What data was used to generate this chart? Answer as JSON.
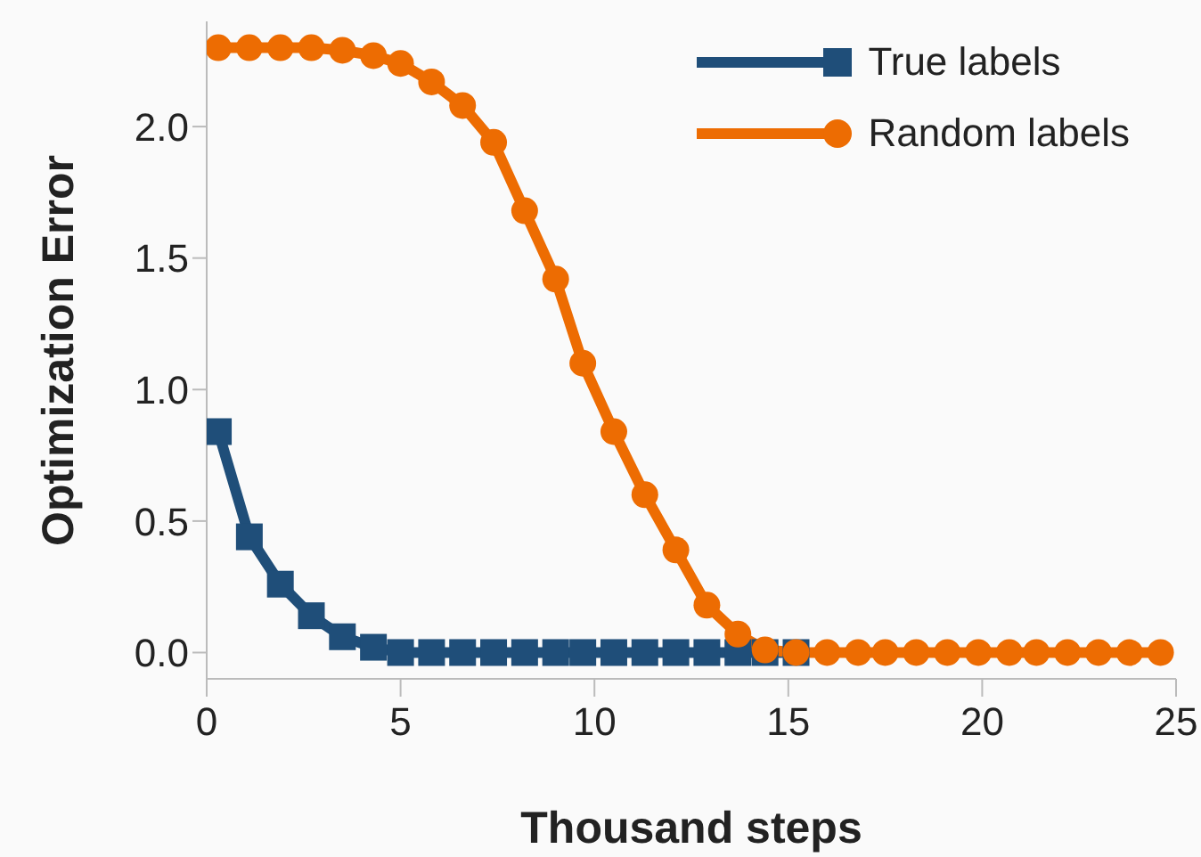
{
  "chart_data": {
    "type": "line",
    "xlabel": "Thousand steps",
    "ylabel": "Optimization Error",
    "x": [
      0.3,
      1.1,
      1.9,
      2.7,
      3.5,
      4.3,
      5.0,
      5.8,
      6.6,
      7.4,
      8.2,
      9.0,
      9.7,
      10.5,
      11.3,
      12.1,
      12.9,
      13.7,
      14.4,
      15.2,
      16.0,
      16.8,
      17.5,
      18.3,
      19.1,
      19.9,
      20.7,
      21.4,
      22.2,
      23.0,
      23.8,
      24.6
    ],
    "series": [
      {
        "name": "True labels",
        "color": "#1f4e79",
        "marker": "square",
        "values": [
          0.84,
          0.44,
          0.26,
          0.14,
          0.06,
          0.02,
          0,
          0,
          0,
          0,
          0,
          0,
          0,
          0,
          0,
          0,
          0,
          0,
          0,
          0,
          null,
          null,
          null,
          null,
          null,
          null,
          null,
          null,
          null,
          null,
          null,
          null
        ]
      },
      {
        "name": "Random labels",
        "color": "#ed6c02",
        "marker": "circle",
        "values": [
          2.3,
          2.3,
          2.3,
          2.3,
          2.29,
          2.27,
          2.24,
          2.17,
          2.08,
          1.94,
          1.68,
          1.42,
          1.1,
          0.84,
          0.6,
          0.39,
          0.18,
          0.07,
          0.01,
          0,
          0,
          0,
          0,
          0,
          0,
          0,
          0,
          0,
          0,
          0,
          0,
          0
        ]
      }
    ],
    "xlim": [
      0,
      25
    ],
    "xticks": [
      0,
      5,
      10,
      15,
      20,
      25
    ],
    "ylim": [
      -0.1,
      2.4
    ],
    "yticks": [
      {
        "value": 0,
        "label": "0.0"
      },
      {
        "value": 0.5,
        "label": "0.5"
      },
      {
        "value": 1,
        "label": "1.0"
      },
      {
        "value": 1.5,
        "label": "1.5"
      },
      {
        "value": 2,
        "label": "2.0"
      }
    ],
    "grid": false,
    "legend": "top right",
    "line_style": "solid"
  }
}
